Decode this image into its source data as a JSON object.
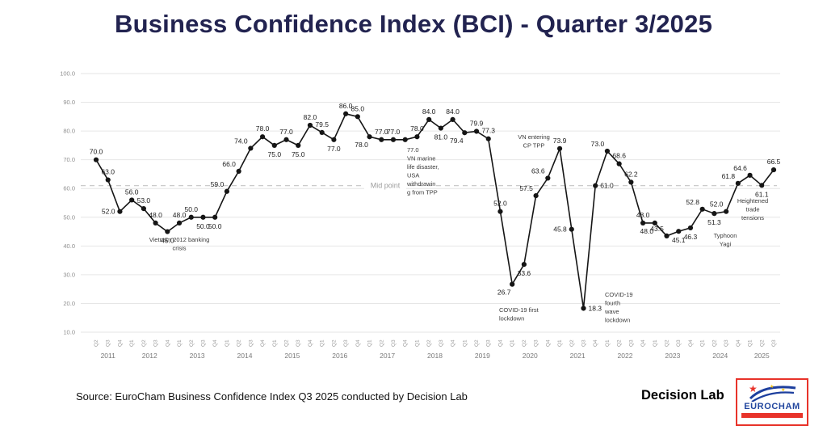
{
  "title": "Business Confidence Index (BCI) - Quarter 3/2025",
  "footer": {
    "source": "Source: EuroCham Business Confidence Index Q3 2025 conducted by Decision Lab",
    "decision_lab": "Decision Lab",
    "eurocham": "EUROCHAM"
  },
  "chart_data": {
    "type": "line",
    "title": "Business Confidence Index (BCI) - Quarter 3/2025",
    "xlabel": "",
    "ylabel": "",
    "ylim": [
      10,
      100
    ],
    "yticks": [
      100,
      90,
      80,
      70,
      60,
      50,
      40,
      30,
      20,
      10
    ],
    "grid": true,
    "legend": "none",
    "line_color": "#151515",
    "midpoint_label": "Mid point",
    "midpoint_value": 61,
    "points": [
      {
        "y": 2011,
        "q": "Q2",
        "v": 70.0,
        "lp": "a"
      },
      {
        "y": 2011,
        "q": "Q3",
        "v": 63.0,
        "lp": "a"
      },
      {
        "y": 2011,
        "q": "Q4",
        "v": 52.0,
        "lp": "l"
      },
      {
        "y": 2012,
        "q": "Q1",
        "v": 56.0,
        "lp": "a"
      },
      {
        "y": 2012,
        "q": "Q2",
        "v": 53.0,
        "lp": "a"
      },
      {
        "y": 2012,
        "q": "Q3",
        "v": 48.0,
        "lp": "a"
      },
      {
        "y": 2012,
        "q": "Q4",
        "v": 45.0,
        "lp": "b"
      },
      {
        "y": 2013,
        "q": "Q1",
        "v": 48.0,
        "lp": "a"
      },
      {
        "y": 2013,
        "q": "Q2",
        "v": 50.0,
        "lp": "a"
      },
      {
        "y": 2013,
        "q": "Q3",
        "v": 50.0,
        "lp": "b"
      },
      {
        "y": 2013,
        "q": "Q4",
        "v": 50.0,
        "lp": "b"
      },
      {
        "y": 2014,
        "q": "Q1",
        "v": 59.0,
        "lp": "al"
      },
      {
        "y": 2014,
        "q": "Q2",
        "v": 66.0,
        "lp": "al"
      },
      {
        "y": 2014,
        "q": "Q3",
        "v": 74.0,
        "lp": "al"
      },
      {
        "y": 2014,
        "q": "Q4",
        "v": 78.0,
        "lp": "a"
      },
      {
        "y": 2015,
        "q": "Q1",
        "v": 75.0,
        "lp": "b"
      },
      {
        "y": 2015,
        "q": "Q2",
        "v": 77.0,
        "lp": "a"
      },
      {
        "y": 2015,
        "q": "Q3",
        "v": 75.0,
        "lp": "b"
      },
      {
        "y": 2015,
        "q": "Q4",
        "v": 82.0,
        "lp": "a"
      },
      {
        "y": 2016,
        "q": "Q1",
        "v": 79.5,
        "lp": "a"
      },
      {
        "y": 2016,
        "q": "Q2",
        "v": 77.0,
        "lp": "b"
      },
      {
        "y": 2016,
        "q": "Q3",
        "v": 86.0,
        "lp": "a"
      },
      {
        "y": 2016,
        "q": "Q4",
        "v": 85.0,
        "lp": "a"
      },
      {
        "y": 2017,
        "q": "Q1",
        "v": 78.0,
        "lp": "bl"
      },
      {
        "y": 2017,
        "q": "Q2",
        "v": 77.0,
        "lp": "a"
      },
      {
        "y": 2017,
        "q": "Q3",
        "v": 77.0,
        "lp": "a"
      },
      {
        "y": 2017,
        "q": "Q4",
        "v": 77.0,
        "lp": "none"
      },
      {
        "y": 2018,
        "q": "Q1",
        "v": 78.0,
        "lp": "a"
      },
      {
        "y": 2018,
        "q": "Q2",
        "v": 84.0,
        "lp": "a"
      },
      {
        "y": 2018,
        "q": "Q3",
        "v": 81.0,
        "lp": "b"
      },
      {
        "y": 2018,
        "q": "Q4",
        "v": 84.0,
        "lp": "a"
      },
      {
        "y": 2019,
        "q": "Q1",
        "v": 79.4,
        "lp": "bl"
      },
      {
        "y": 2019,
        "q": "Q2",
        "v": 79.9,
        "lp": "a"
      },
      {
        "y": 2019,
        "q": "Q3",
        "v": 77.3,
        "lp": "a"
      },
      {
        "y": 2019,
        "q": "Q4",
        "v": 52.0,
        "lp": "a"
      },
      {
        "y": 2020,
        "q": "Q1",
        "v": 26.7,
        "lp": "bl"
      },
      {
        "y": 2020,
        "q": "Q2",
        "v": 33.6,
        "lp": "b"
      },
      {
        "y": 2020,
        "q": "Q3",
        "v": 57.5,
        "lp": "al"
      },
      {
        "y": 2020,
        "q": "Q4",
        "v": 63.6,
        "lp": "al"
      },
      {
        "y": 2021,
        "q": "Q1",
        "v": 73.9,
        "lp": "a"
      },
      {
        "y": 2021,
        "q": "Q2",
        "v": 45.8,
        "lp": "l"
      },
      {
        "y": 2021,
        "q": "Q3",
        "v": 18.3,
        "lp": "r"
      },
      {
        "y": 2021,
        "q": "Q4",
        "v": 61.0,
        "lp": "r"
      },
      {
        "y": 2022,
        "q": "Q1",
        "v": 73.0,
        "lp": "al"
      },
      {
        "y": 2022,
        "q": "Q2",
        "v": 68.6,
        "lp": "a"
      },
      {
        "y": 2022,
        "q": "Q3",
        "v": 62.2,
        "lp": "a"
      },
      {
        "y": 2022,
        "q": "Q4",
        "v": 48.0,
        "lp": "a"
      },
      {
        "y": 2023,
        "q": "Q1",
        "v": 48.0,
        "lp": "bl"
      },
      {
        "y": 2023,
        "q": "Q2",
        "v": 43.5,
        "lp": "al"
      },
      {
        "y": 2023,
        "q": "Q3",
        "v": 45.1,
        "lp": "b"
      },
      {
        "y": 2023,
        "q": "Q4",
        "v": 46.3,
        "lp": "b"
      },
      {
        "y": 2024,
        "q": "Q1",
        "v": 52.8,
        "lp": "al"
      },
      {
        "y": 2024,
        "q": "Q2",
        "v": 51.3,
        "lp": "b"
      },
      {
        "y": 2024,
        "q": "Q3",
        "v": 52.0,
        "lp": "al"
      },
      {
        "y": 2024,
        "q": "Q4",
        "v": 61.8,
        "lp": "al"
      },
      {
        "y": 2025,
        "q": "Q1",
        "v": 64.6,
        "lp": "al"
      },
      {
        "y": 2025,
        "q": "Q2",
        "v": 61.1,
        "lp": "b"
      },
      {
        "y": 2025,
        "q": "Q3",
        "v": 66.5,
        "lp": "a"
      }
    ],
    "annotations": [
      {
        "id": "banking-crisis",
        "lines": [
          "Vietnam 2012 banking",
          "crisis"
        ],
        "x": 222,
        "y": 299,
        "align": "middle"
      },
      {
        "id": "marine-tpp",
        "lines": [
          "77.0",
          "VN marine",
          "life disaster,",
          "USA",
          "withdrawin",
          "g from TPP"
        ],
        "x": 504,
        "y": 188,
        "align": "start"
      },
      {
        "id": "cptpp",
        "lines": [
          "VN entering",
          "CP TPP"
        ],
        "x": 661,
        "y": 172,
        "align": "middle"
      },
      {
        "id": "covid-first",
        "lines": [
          "COVID-19 first",
          "lockdown"
        ],
        "x": 618,
        "y": 386,
        "align": "start"
      },
      {
        "id": "covid-fourth",
        "lines": [
          "COVID-19",
          "fourth",
          "wave",
          "lockdown"
        ],
        "x": 749,
        "y": 367,
        "align": "start"
      },
      {
        "id": "typhoon-yagi",
        "lines": [
          "Typhoon",
          "Yagi"
        ],
        "x": 898,
        "y": 294,
        "align": "middle"
      },
      {
        "id": "trade-tensions",
        "lines": [
          "Heightened",
          "trade",
          "tensions"
        ],
        "x": 932,
        "y": 251,
        "align": "middle"
      }
    ]
  }
}
